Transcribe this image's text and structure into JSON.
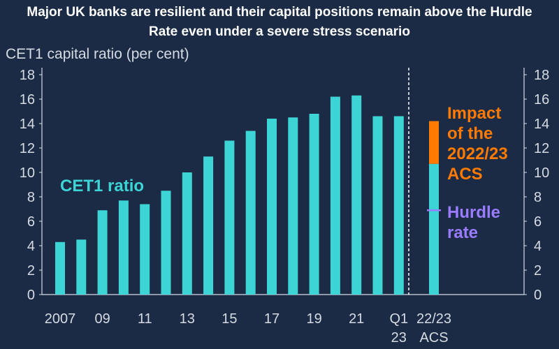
{
  "title_line1": "Major UK banks are resilient and their capital positions remain above the Hurdle",
  "title_line2": "Rate even under a severe stress scenario",
  "chart_data": {
    "type": "bar",
    "ylabel": "CET1 capital ratio (per cent)",
    "ylim": [
      0,
      18
    ],
    "yticks": [
      0,
      2,
      4,
      6,
      8,
      10,
      12,
      14,
      16,
      18
    ],
    "grid": false,
    "categories": [
      "2007",
      "2008",
      "2009",
      "2010",
      "2011",
      "2012",
      "2013",
      "2014",
      "2015",
      "2016",
      "2017",
      "2018",
      "2019",
      "2020",
      "2021",
      "2022",
      "Q1 2023"
    ],
    "values": [
      4.3,
      4.5,
      6.9,
      7.7,
      7.4,
      8.5,
      10.0,
      11.3,
      12.6,
      13.4,
      14.4,
      14.5,
      14.8,
      16.2,
      16.3,
      14.6,
      14.6
    ],
    "xtick_labels": [
      {
        "index": 0,
        "text": "2007"
      },
      {
        "index": 2,
        "text": "09"
      },
      {
        "index": 4,
        "text": "11"
      },
      {
        "index": 6,
        "text": "13"
      },
      {
        "index": 8,
        "text": "15"
      },
      {
        "index": 10,
        "text": "17"
      },
      {
        "index": 12,
        "text": "19"
      },
      {
        "index": 14,
        "text": "21"
      },
      {
        "index": 16,
        "text": "Q1",
        "text2": "23"
      }
    ],
    "stress_bar": {
      "xlabel": "22/23",
      "xlabel2": "ACS",
      "post_stress_value": 10.7,
      "pre_stress_value": 14.2,
      "hurdle_rate": 6.9
    },
    "annotations": {
      "series_label": "CET1 ratio",
      "impact_label": [
        "Impact",
        "of the",
        "2022/23",
        "ACS"
      ],
      "hurdle_label": [
        "Hurdle",
        "rate"
      ]
    },
    "colors": {
      "bar": "#3cd4d4",
      "impact": "#ff7a00",
      "hurdle": "#9b7bff",
      "axis": "#d6dbe3",
      "background": "#1b2b45"
    }
  }
}
